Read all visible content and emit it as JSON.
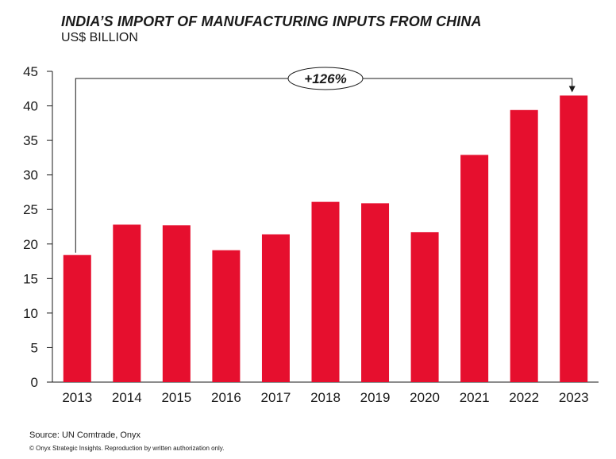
{
  "header": {
    "title": "INDIA’S IMPORT OF MANUFACTURING INPUTS FROM CHINA",
    "subtitle": "US$ BILLION"
  },
  "footer": {
    "source": "Source: UN Comtrade, Onyx",
    "copyright": "© Onyx Strategic Insights. Reproduction by written authorization only."
  },
  "colors": {
    "bar": "#e60f2e",
    "axis": "#1a1a1a",
    "text": "#1a1a1a"
  },
  "chart_data": {
    "type": "bar",
    "title": "INDIA’S IMPORT OF MANUFACTURING INPUTS FROM CHINA",
    "subtitle": "US$ BILLION",
    "categories": [
      "2013",
      "2014",
      "2015",
      "2016",
      "2017",
      "2018",
      "2019",
      "2020",
      "2021",
      "2022",
      "2023"
    ],
    "values": [
      18.4,
      22.8,
      22.7,
      19.1,
      21.4,
      26.1,
      25.9,
      21.7,
      32.9,
      39.4,
      41.5
    ],
    "ylim": [
      0,
      45
    ],
    "yticks": [
      0,
      5,
      10,
      15,
      20,
      25,
      30,
      35,
      40,
      45
    ],
    "grid": false,
    "annotation": {
      "text": "+126%",
      "from": "2013",
      "to": "2023"
    }
  }
}
